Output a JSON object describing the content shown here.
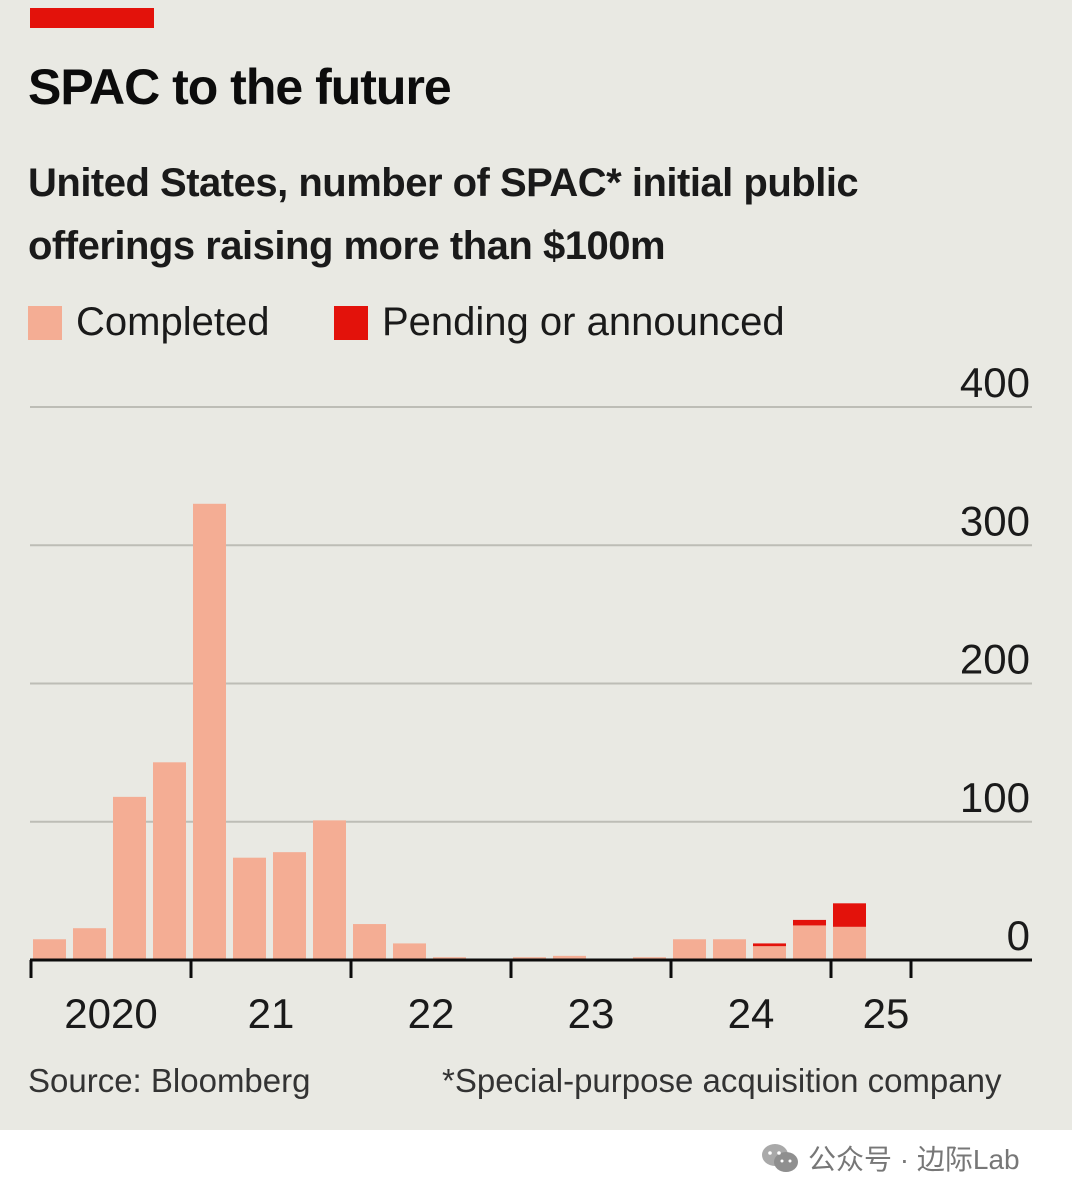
{
  "title": "SPAC to the future",
  "subtitle_line1": "United States, number of SPAC* initial public",
  "subtitle_line2": "offerings raising more than $100m",
  "source": "Source: Bloomberg",
  "footnote": "*Special-purpose acquisition company",
  "watermark": "公众号 · 边际Lab",
  "colors": {
    "completed": "#f4ad94",
    "pending": "#e3120b",
    "accent_bar": "#e3120b",
    "grid": "#bdbdb6",
    "axis": "#0c0c0c",
    "background": "#e9e9e3"
  },
  "chart_data": {
    "type": "bar",
    "stacked": true,
    "ylim": [
      0,
      400
    ],
    "yticks": [
      0,
      100,
      200,
      300,
      400
    ],
    "grid": true,
    "legend": "top-left",
    "categories": [
      "2020 Q1",
      "2020 Q2",
      "2020 Q3",
      "2020 Q4",
      "2021 Q1",
      "2021 Q2",
      "2021 Q3",
      "2021 Q4",
      "2022 Q1",
      "2022 Q2",
      "2022 Q3",
      "2022 Q4",
      "2023 Q1",
      "2023 Q2",
      "2023 Q3",
      "2023 Q4",
      "2024 Q1",
      "2024 Q2",
      "2024 Q3",
      "2024 Q4",
      "2025 Q1",
      "2025 Q2"
    ],
    "xtick_labels": [
      "2020",
      "21",
      "22",
      "23",
      "24",
      "25"
    ],
    "series": [
      {
        "name": "Completed",
        "values": [
          15,
          23,
          118,
          143,
          330,
          74,
          78,
          101,
          26,
          12,
          2,
          1,
          2,
          3,
          1,
          2,
          15,
          15,
          10,
          25,
          24,
          0
        ]
      },
      {
        "name": "Pending or announced",
        "values": [
          0,
          0,
          0,
          0,
          0,
          0,
          0,
          0,
          0,
          0,
          0,
          0,
          0,
          0,
          0,
          0,
          0,
          0,
          2,
          4,
          17,
          0
        ]
      }
    ]
  }
}
